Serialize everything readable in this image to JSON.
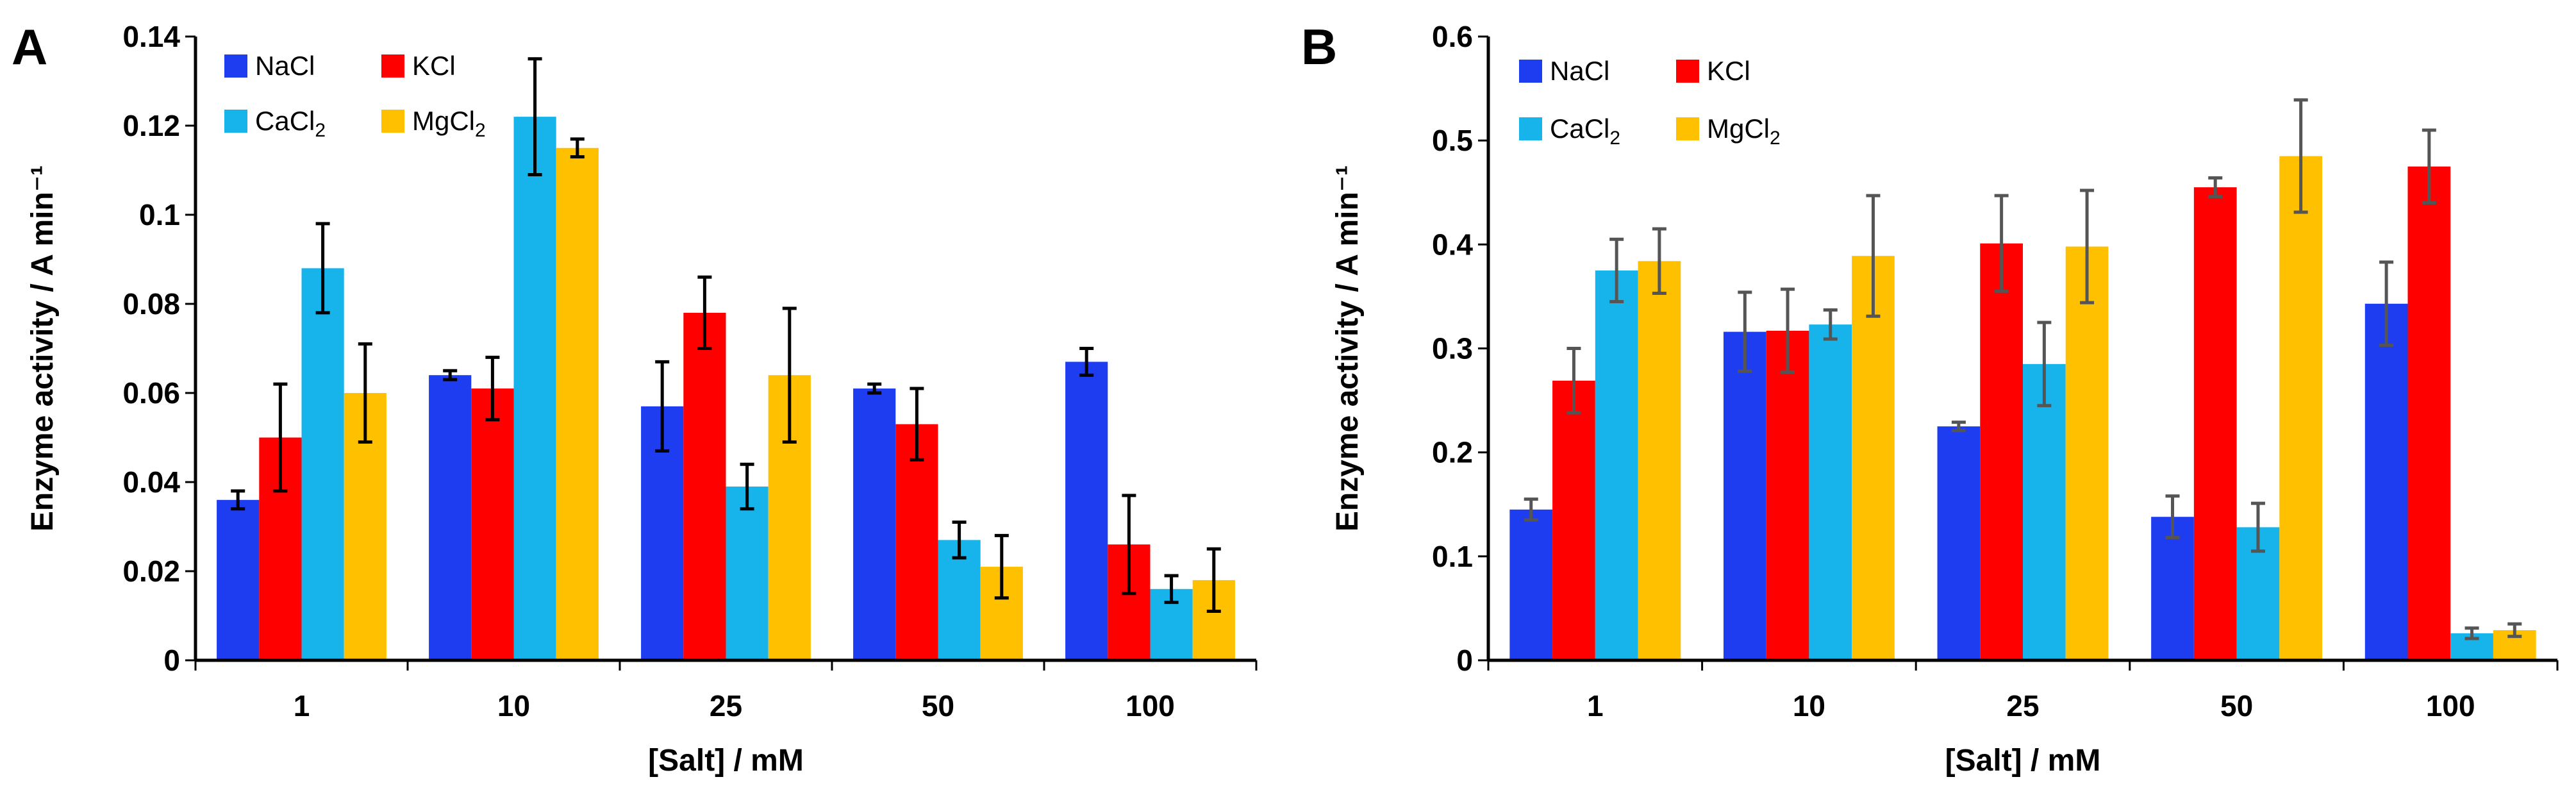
{
  "chart_data": [
    {
      "panel": "A",
      "type": "bar",
      "ylabel": "Enzyme activity / A min⁻¹",
      "xlabel": "[Salt] / mM",
      "categories": [
        "1",
        "10",
        "25",
        "50",
        "100"
      ],
      "ylim": [
        0,
        0.14
      ],
      "yticks": [
        0,
        0.02,
        0.04,
        0.06,
        0.08,
        0.1,
        0.12,
        0.14
      ],
      "ytick_labels": [
        "0",
        "0.02",
        "0.04",
        "0.06",
        "0.08",
        "0.1",
        "0.12",
        "0.14"
      ],
      "legend_placement": "top-left",
      "error_bar_color": "#000000",
      "series": [
        {
          "name": "NaCl",
          "color": "#1f3df0",
          "values": [
            0.036,
            0.064,
            0.057,
            0.061,
            0.067
          ],
          "errors": [
            0.002,
            0.001,
            0.01,
            0.001,
            0.003
          ]
        },
        {
          "name": "KCl",
          "color": "#ff0000",
          "values": [
            0.05,
            0.061,
            0.078,
            0.053,
            0.026
          ],
          "errors": [
            0.012,
            0.007,
            0.008,
            0.008,
            0.011
          ]
        },
        {
          "name": "CaCl₂",
          "color": "#17b4ec",
          "values": [
            0.088,
            0.122,
            0.039,
            0.027,
            0.016
          ],
          "errors": [
            0.01,
            0.013,
            0.005,
            0.004,
            0.003
          ]
        },
        {
          "name": "MgCl₂",
          "color": "#ffc000",
          "values": [
            0.06,
            0.115,
            0.064,
            0.021,
            0.018
          ],
          "errors": [
            0.011,
            0.002,
            0.015,
            0.007,
            0.007
          ]
        }
      ]
    },
    {
      "panel": "B",
      "type": "bar",
      "ylabel": "Enzyme activity / A min⁻¹",
      "xlabel": "[Salt] / mM",
      "categories": [
        "1",
        "10",
        "25",
        "50",
        "100"
      ],
      "ylim": [
        0,
        0.6
      ],
      "yticks": [
        0,
        0.1,
        0.2,
        0.3,
        0.4,
        0.5,
        0.6
      ],
      "ytick_labels": [
        "0",
        "0.1",
        "0.2",
        "0.3",
        "0.4",
        "0.5",
        "0.6"
      ],
      "legend_placement": "top-left",
      "error_bar_color": "#555555",
      "series": [
        {
          "name": "NaCl",
          "color": "#1f3df0",
          "values": [
            0.145,
            0.316,
            0.225,
            0.138,
            0.343
          ],
          "errors": [
            0.01,
            0.038,
            0.004,
            0.02,
            0.04
          ]
        },
        {
          "name": "KCl",
          "color": "#ff0000",
          "values": [
            0.269,
            0.317,
            0.401,
            0.455,
            0.475
          ],
          "errors": [
            0.031,
            0.04,
            0.046,
            0.009,
            0.035
          ]
        },
        {
          "name": "CaCl₂",
          "color": "#17b4ec",
          "values": [
            0.375,
            0.323,
            0.285,
            0.128,
            0.026
          ],
          "errors": [
            0.03,
            0.014,
            0.04,
            0.023,
            0.005
          ]
        },
        {
          "name": "MgCl₂",
          "color": "#ffc000",
          "values": [
            0.384,
            0.389,
            0.398,
            0.485,
            0.029
          ],
          "errors": [
            0.031,
            0.058,
            0.054,
            0.054,
            0.006
          ]
        }
      ]
    }
  ]
}
